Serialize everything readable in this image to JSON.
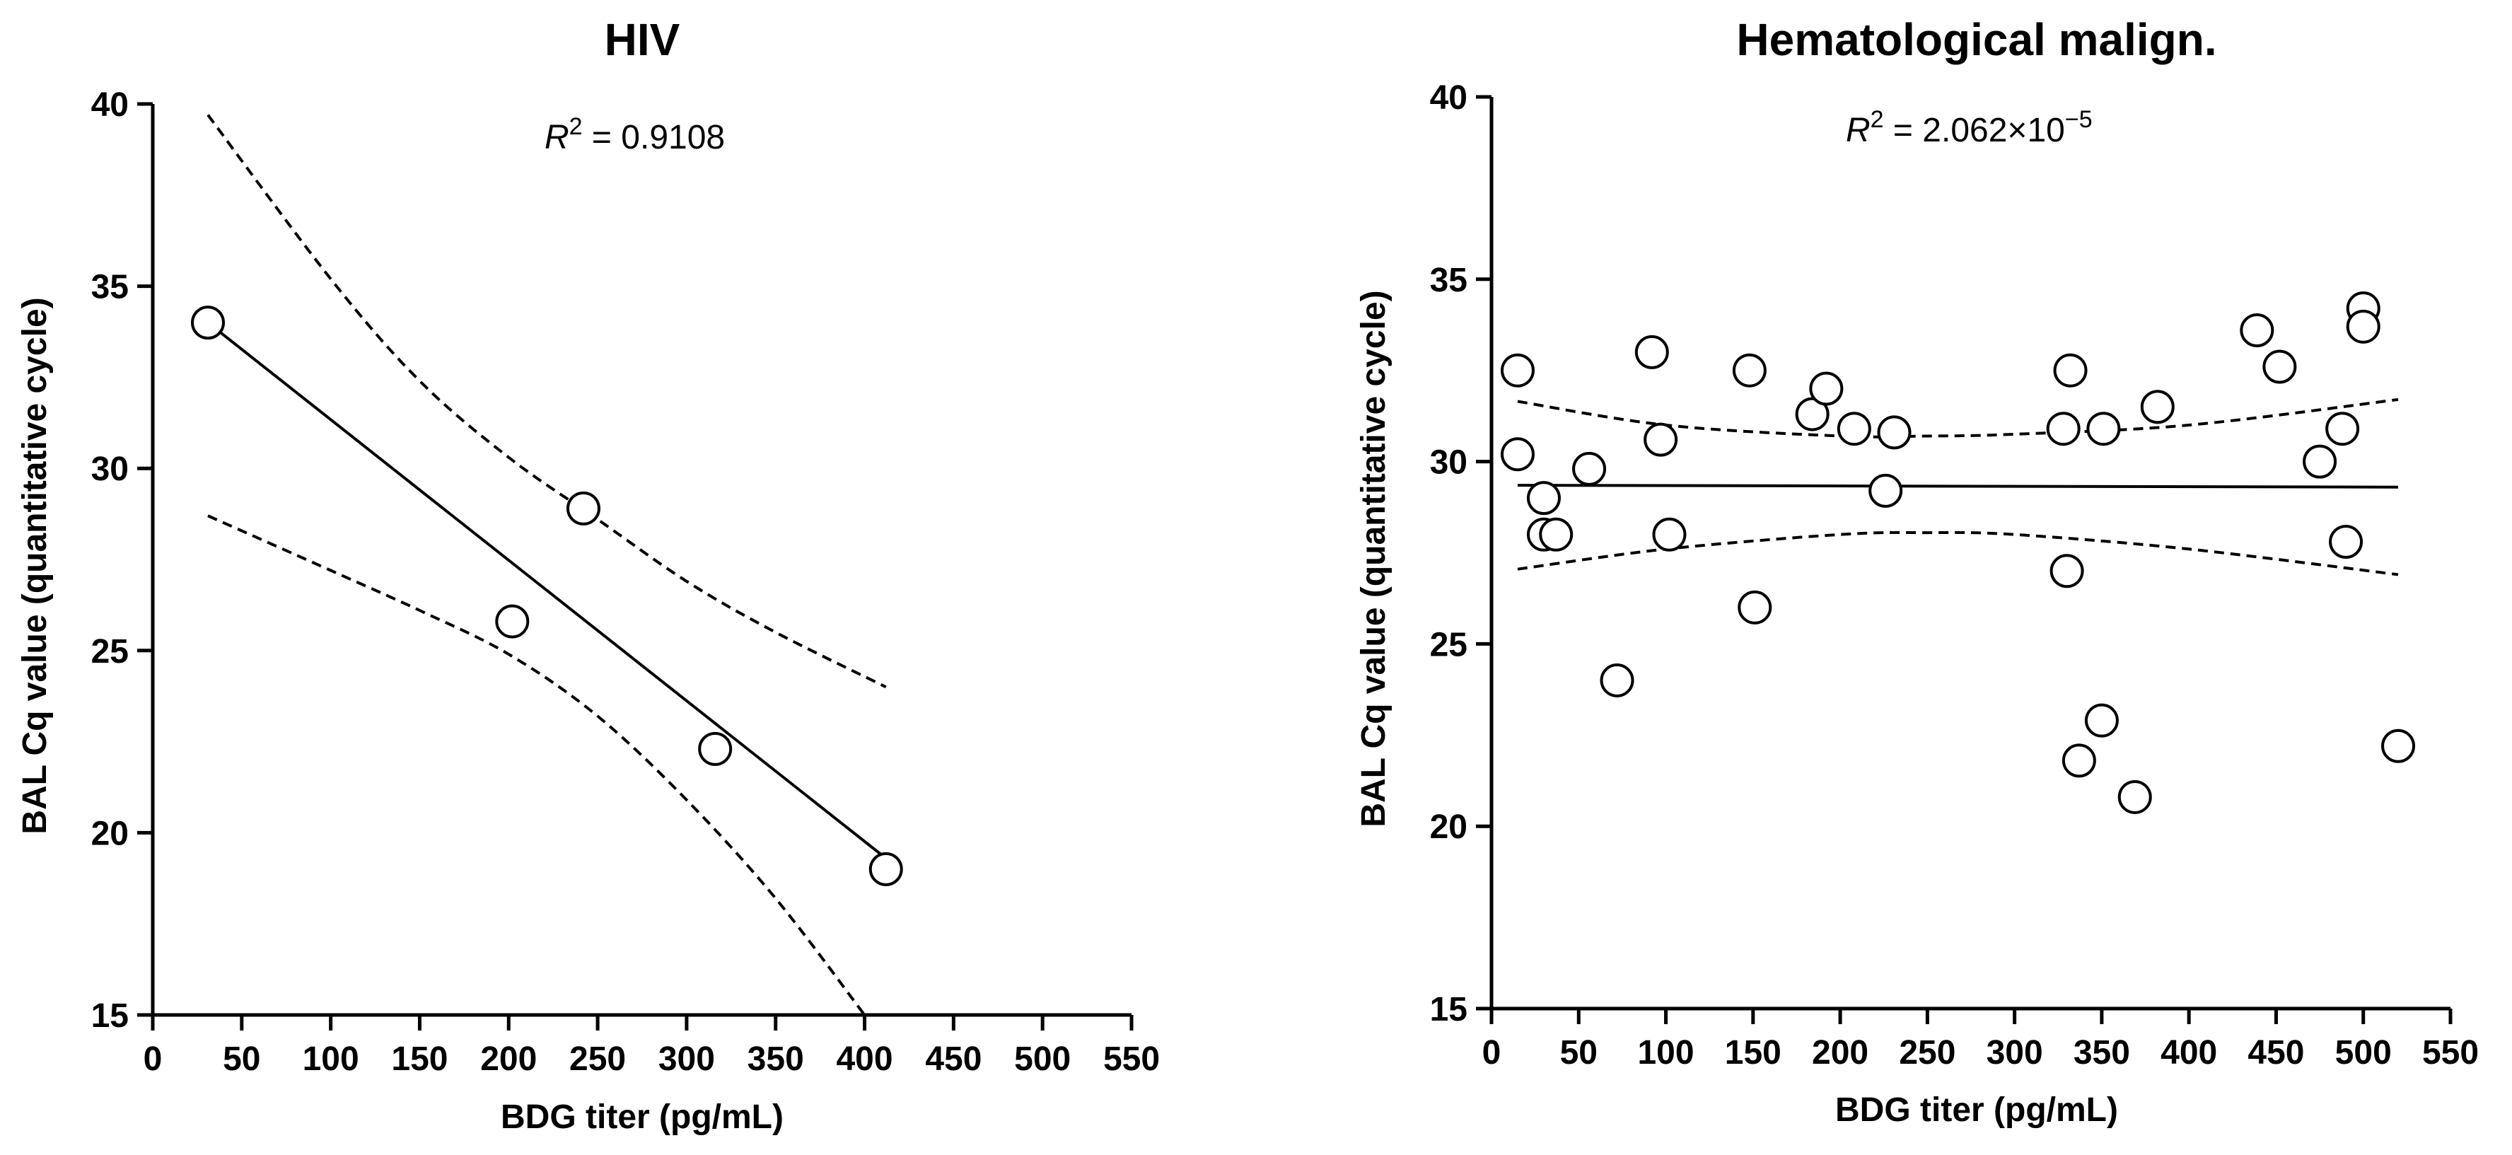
{
  "chart_data": [
    {
      "type": "scatter",
      "title": "HIV",
      "xlabel": "BDG titer (pg/mL)",
      "ylabel": "BAL Cq value (quantitative cycle)",
      "xlim": [
        0,
        550
      ],
      "ylim": [
        15,
        40
      ],
      "xticks": [
        "0",
        "50",
        "100",
        "150",
        "200",
        "250",
        "300",
        "350",
        "400",
        "450",
        "500",
        "550"
      ],
      "yticks": [
        "15",
        "20",
        "25",
        "30",
        "35",
        "40"
      ],
      "annotation": {
        "prefix": "R",
        "sup": "2",
        "value": " = 0.9108"
      },
      "points": [
        {
          "x": 31,
          "y": 34.0
        },
        {
          "x": 202,
          "y": 25.8
        },
        {
          "x": 242,
          "y": 28.9
        },
        {
          "x": 316,
          "y": 22.3
        },
        {
          "x": 412,
          "y": 19.0
        }
      ],
      "fit_line": {
        "x": [
          31,
          412
        ],
        "y": [
          34.0,
          19.3
        ]
      },
      "ci_upper": {
        "x": [
          31,
          100,
          150,
          200,
          250,
          300,
          350,
          412
        ],
        "y": [
          39.7,
          35.2,
          32.4,
          30.3,
          28.6,
          26.9,
          25.5,
          24.0
        ]
      },
      "ci_lower": {
        "x": [
          31,
          100,
          150,
          200,
          250,
          300,
          350,
          400
        ],
        "y": [
          28.7,
          27.2,
          26.1,
          24.9,
          23.2,
          20.9,
          18.2,
          15.0
        ]
      }
    },
    {
      "type": "scatter",
      "title": "Hematological malign.",
      "xlabel": "BDG titer (pg/mL)",
      "ylabel": "BAL Cq value (quantitative cycle)",
      "xlim": [
        0,
        550
      ],
      "ylim": [
        15,
        40
      ],
      "xticks": [
        "0",
        "50",
        "100",
        "150",
        "200",
        "250",
        "300",
        "350",
        "400",
        "450",
        "500",
        "550"
      ],
      "yticks": [
        "15",
        "20",
        "25",
        "30",
        "35",
        "40"
      ],
      "annotation": {
        "prefix": "R",
        "sup": "2",
        "value": " = 2.062×10",
        "exp": "−5"
      },
      "points": [
        {
          "x": 15,
          "y": 32.5
        },
        {
          "x": 15,
          "y": 30.2
        },
        {
          "x": 30,
          "y": 29.0
        },
        {
          "x": 30,
          "y": 28.0
        },
        {
          "x": 37,
          "y": 28.0
        },
        {
          "x": 56,
          "y": 29.8
        },
        {
          "x": 72,
          "y": 24.0
        },
        {
          "x": 92,
          "y": 33.0
        },
        {
          "x": 97,
          "y": 30.6
        },
        {
          "x": 102,
          "y": 28.0
        },
        {
          "x": 148,
          "y": 32.5
        },
        {
          "x": 151,
          "y": 26.0
        },
        {
          "x": 184,
          "y": 31.3
        },
        {
          "x": 192,
          "y": 32.0
        },
        {
          "x": 208,
          "y": 30.9
        },
        {
          "x": 226,
          "y": 29.2
        },
        {
          "x": 231,
          "y": 30.8
        },
        {
          "x": 328,
          "y": 30.9
        },
        {
          "x": 330,
          "y": 27.0
        },
        {
          "x": 332,
          "y": 32.5
        },
        {
          "x": 337,
          "y": 21.8
        },
        {
          "x": 350,
          "y": 22.9
        },
        {
          "x": 351,
          "y": 30.9
        },
        {
          "x": 369,
          "y": 20.8
        },
        {
          "x": 382,
          "y": 31.5
        },
        {
          "x": 439,
          "y": 33.6
        },
        {
          "x": 452,
          "y": 32.6
        },
        {
          "x": 475,
          "y": 30.0
        },
        {
          "x": 488,
          "y": 30.9
        },
        {
          "x": 490,
          "y": 27.8
        },
        {
          "x": 500,
          "y": 34.2
        },
        {
          "x": 500,
          "y": 33.7
        },
        {
          "x": 520,
          "y": 22.2
        }
      ],
      "fit_line": {
        "x": [
          15,
          520
        ],
        "y": [
          29.35,
          29.3
        ]
      },
      "ci_upper": {
        "x": [
          15,
          100,
          200,
          250,
          300,
          400,
          520
        ],
        "y": [
          31.65,
          31.0,
          30.7,
          30.7,
          30.75,
          31.0,
          31.7
        ]
      },
      "ci_lower": {
        "x": [
          15,
          100,
          200,
          250,
          300,
          400,
          520
        ],
        "y": [
          27.05,
          27.6,
          28.0,
          28.05,
          28.0,
          27.6,
          26.9
        ]
      }
    }
  ]
}
